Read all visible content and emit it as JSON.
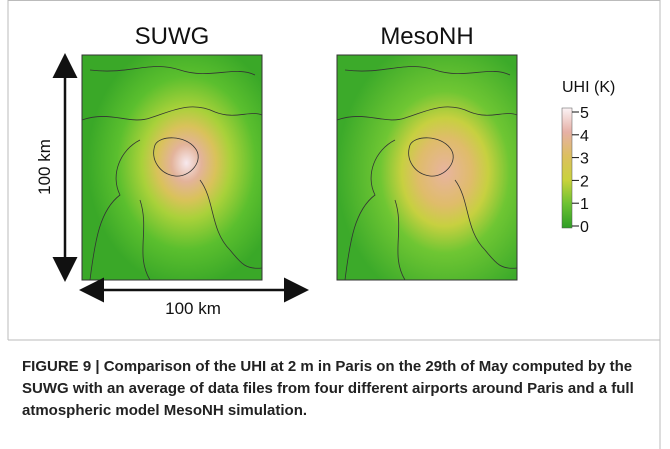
{
  "figure": {
    "panels": [
      {
        "title": "SUWG"
      },
      {
        "title": "MesoNH"
      }
    ],
    "scale_vertical": "100 km",
    "scale_horizontal": "100 km",
    "colorbar": {
      "title": "UHI (K)",
      "lim": [
        0,
        5
      ],
      "ticks": [
        0,
        1,
        2,
        3,
        4,
        5
      ]
    },
    "caption": "FIGURE 9 | Comparison of the UHI at 2 m in Paris on the 29th of May computed by the SUWG with an average of data files from four different airports around Paris and a full atmospheric model MesoNH simulation."
  }
}
